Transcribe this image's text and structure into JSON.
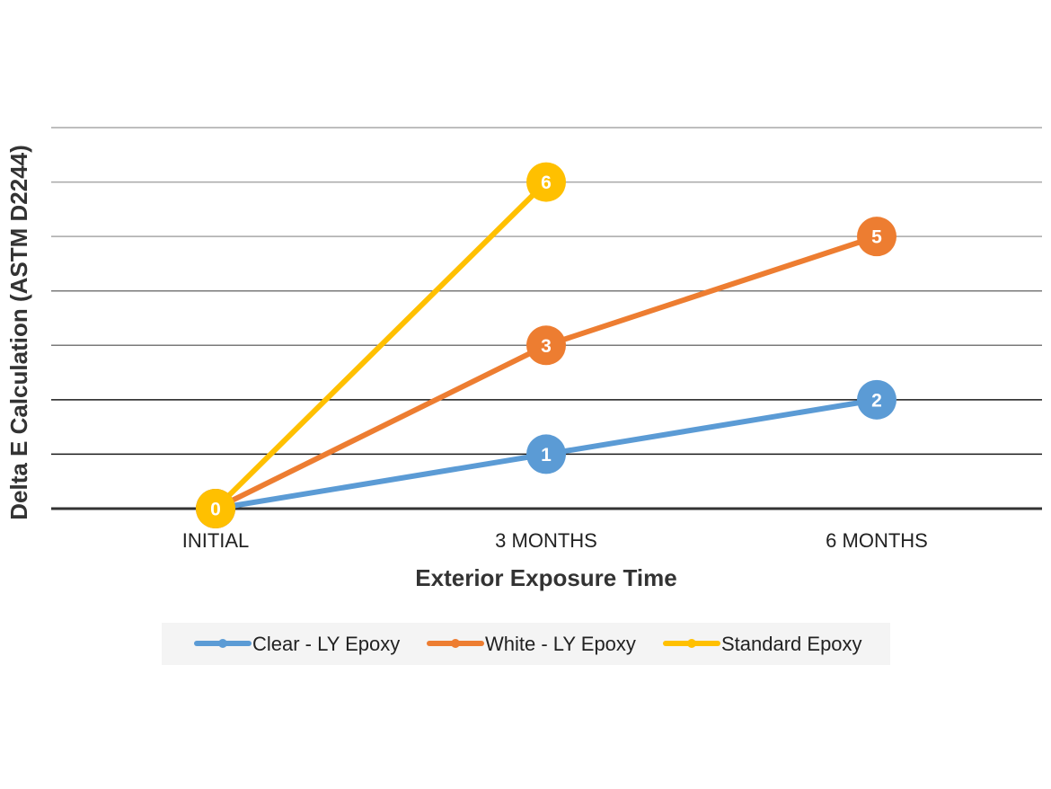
{
  "chart_data": {
    "type": "line",
    "categories": [
      "INITIAL",
      "3 MONTHS",
      "6 MONTHS"
    ],
    "xlabel": "Exterior Exposure Time",
    "ylabel": "Delta E Calculation (ASTM D2244)",
    "ylim": [
      0,
      7
    ],
    "y_tick_labels_shown": false,
    "grid": true,
    "legend_position": "bottom",
    "data_labels": true,
    "series": [
      {
        "name": "Clear - LY Epoxy",
        "color": "#5b9bd5",
        "values": [
          0,
          1,
          2
        ]
      },
      {
        "name": "White - LY Epoxy",
        "color": "#ed7d31",
        "values": [
          0,
          3,
          5
        ]
      },
      {
        "name": "Standard Epoxy",
        "color": "#ffc000",
        "values": [
          0,
          6,
          null
        ]
      }
    ]
  }
}
